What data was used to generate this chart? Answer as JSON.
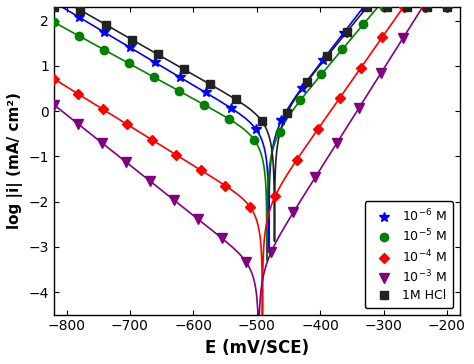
{
  "xlabel": "E (mV/SCE)",
  "ylabel": "log |i| (mA/ cm²)",
  "xlim": [
    -820,
    -180
  ],
  "ylim": [
    -4.5,
    2.3
  ],
  "xticks": [
    -800,
    -700,
    -600,
    -500,
    -400,
    -300,
    -200
  ],
  "yticks": [
    -4,
    -3,
    -2,
    -1,
    0,
    1,
    2
  ],
  "series": [
    {
      "label": "10$^{-6}$ M",
      "color": "blue",
      "marker": "*",
      "markersize": 7,
      "ecorr": -481,
      "icorr_log": -0.42,
      "ba": 55,
      "bc": 120,
      "cat_start": -820,
      "an_end": -200
    },
    {
      "label": "10$^{-5}$ M",
      "color": "green",
      "marker": "o",
      "markersize": 6,
      "ecorr": -484,
      "icorr_log": -0.62,
      "ba": 60,
      "bc": 130,
      "cat_start": -820,
      "an_end": -200
    },
    {
      "label": "10$^{-4}$ M",
      "color": "red",
      "marker": "D",
      "markersize": 5,
      "ecorr": -491,
      "icorr_log": -2.15,
      "ba": 50,
      "bc": 115,
      "cat_start": -820,
      "an_end": -200
    },
    {
      "label": "10$^{-3}$ M",
      "color": "purple",
      "marker": "v",
      "markersize": 7,
      "ecorr": -497,
      "icorr_log": -3.45,
      "ba": 45,
      "bc": 90,
      "cat_start": -820,
      "an_end": -200
    },
    {
      "label": "1M HCl",
      "color": "#222222",
      "marker": "s",
      "markersize": 6,
      "ecorr": -472,
      "icorr_log": -0.22,
      "ba": 58,
      "bc": 125,
      "cat_start": -820,
      "an_end": -200
    }
  ],
  "background_color": "white",
  "axis_color": "black"
}
